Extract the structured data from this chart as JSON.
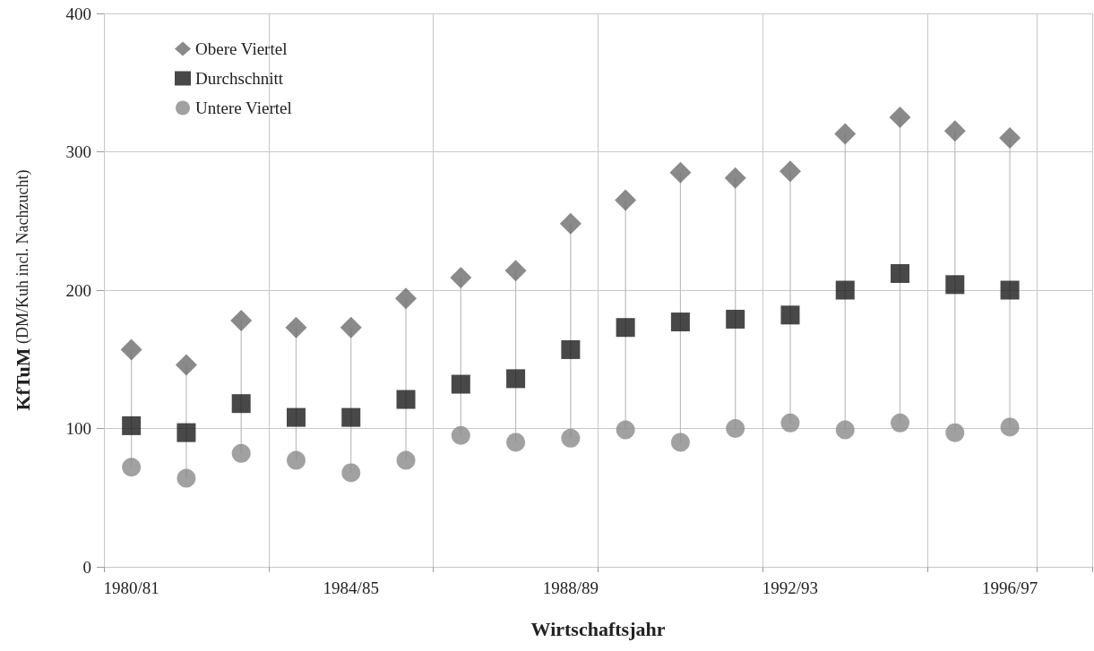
{
  "chart_data": {
    "type": "scatter",
    "xlabel": "Wirtschaftsjahr",
    "ylabel": "KfTuM (DM/Kuh incl. Nachzucht)",
    "categories": [
      "1980/81",
      null,
      null,
      null,
      "1984/85",
      null,
      null,
      null,
      "1988/89",
      null,
      null,
      null,
      "1992/93",
      null,
      null,
      null,
      "1996/97",
      null
    ],
    "series": [
      {
        "name": "Obere Viertel",
        "color": "#6d6d6d",
        "marker": "diamond",
        "values": [
          157,
          146,
          178,
          173,
          173,
          194,
          209,
          214,
          248,
          265,
          285,
          281,
          286,
          313,
          325,
          315,
          310,
          null
        ]
      },
      {
        "name": "Durchschnitt",
        "color": "#1a1a1a",
        "marker": "square",
        "values": [
          102,
          97,
          118,
          108,
          108,
          121,
          132,
          136,
          157,
          173,
          177,
          179,
          182,
          200,
          212,
          204,
          200,
          null
        ]
      },
      {
        "name": "Untere Viertel",
        "color": "#8a8a8a",
        "marker": "circle",
        "values": [
          72,
          64,
          82,
          77,
          68,
          77,
          95,
          90,
          93,
          99,
          90,
          100,
          104,
          99,
          104,
          97,
          101,
          null
        ]
      }
    ],
    "ylim": [
      0,
      400
    ],
    "yticks": [
      0,
      100,
      200,
      300,
      400
    ],
    "grid": true,
    "legend": "top left"
  }
}
